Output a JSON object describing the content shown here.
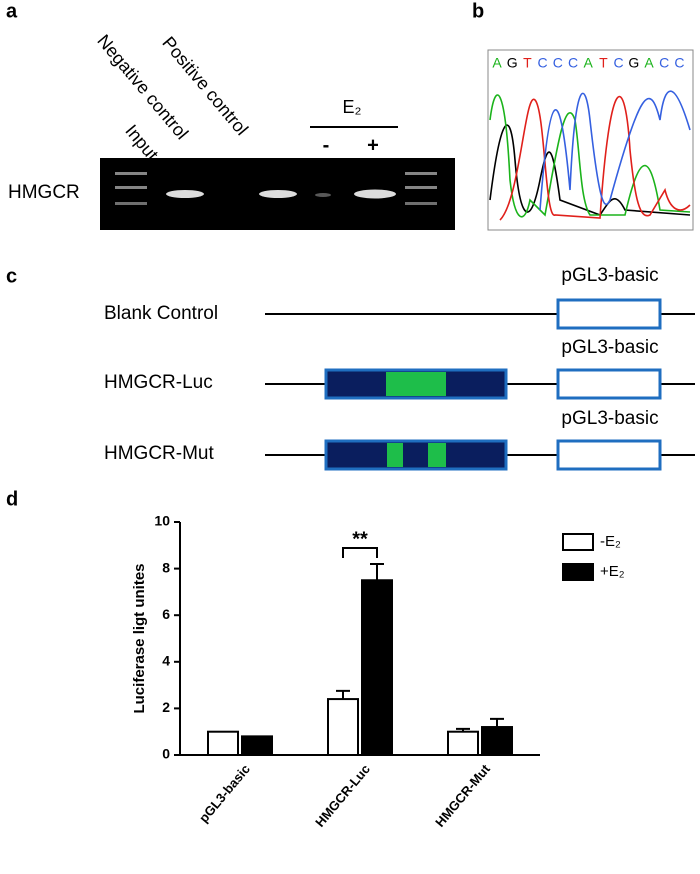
{
  "panel_labels": [
    "a",
    "b",
    "c",
    "d"
  ],
  "gel": {
    "row_label": "HMGCR",
    "lanes": [
      "Input",
      "Negative control",
      "Positive control"
    ],
    "treatment": "E₂",
    "conditions": [
      "-",
      "+"
    ]
  },
  "sequencing": {
    "sequence": [
      "A",
      "G",
      "T",
      "C",
      "C",
      "C",
      "A",
      "T",
      "C",
      "G",
      "A",
      "C",
      "C"
    ]
  },
  "constructs": {
    "vector": "pGL3-basic",
    "rows": [
      "Blank Control",
      "HMGCR-Luc",
      "HMGCR-Mut"
    ]
  },
  "chart_data": {
    "type": "bar",
    "y_label": "Luciferase ligt unites",
    "categories": [
      "pGL3-basic",
      "HMGCR-Luc",
      "HMGCR-Mut"
    ],
    "series": [
      {
        "name": "-E₂",
        "color": "#ffffff",
        "values": [
          1.0,
          2.4,
          1.0
        ],
        "errors": [
          0,
          0.35,
          0.12
        ]
      },
      {
        "name": "+E₂",
        "color": "#000000",
        "values": [
          0.8,
          7.5,
          1.2
        ],
        "errors": [
          0,
          0.7,
          0.35
        ]
      }
    ],
    "ylim": [
      0,
      10
    ],
    "yticks": [
      0,
      2,
      4,
      6,
      8,
      10
    ],
    "grid": false,
    "annotations": [
      "**"
    ]
  }
}
